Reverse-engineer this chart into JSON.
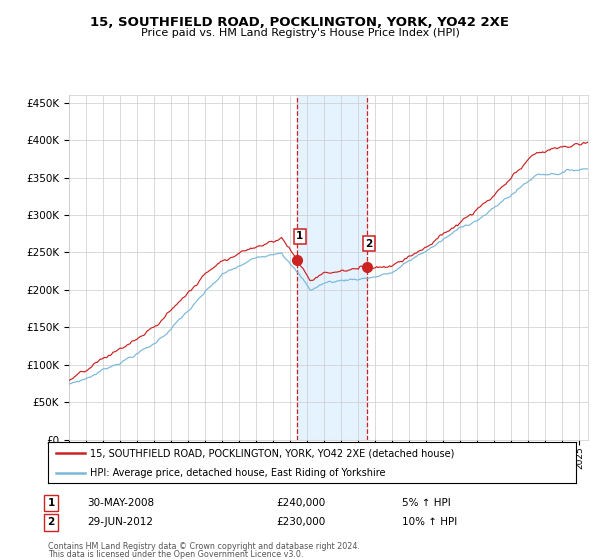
{
  "title": "15, SOUTHFIELD ROAD, POCKLINGTON, YORK, YO42 2XE",
  "subtitle": "Price paid vs. HM Land Registry's House Price Index (HPI)",
  "legend_line1": "15, SOUTHFIELD ROAD, POCKLINGTON, YORK, YO42 2XE (detached house)",
  "legend_line2": "HPI: Average price, detached house, East Riding of Yorkshire",
  "transaction1_label": "1",
  "transaction1_date": "30-MAY-2008",
  "transaction1_price": "£240,000",
  "transaction1_hpi": "5% ↑ HPI",
  "transaction1_year": 2008.41,
  "transaction1_value": 240000,
  "transaction2_label": "2",
  "transaction2_date": "29-JUN-2012",
  "transaction2_price": "£230,000",
  "transaction2_hpi": "10% ↑ HPI",
  "transaction2_year": 2012.49,
  "transaction2_value": 230000,
  "footnote1": "Contains HM Land Registry data © Crown copyright and database right 2024.",
  "footnote2": "This data is licensed under the Open Government Licence v3.0.",
  "hpi_color": "#7ab8d9",
  "price_color": "#cc2222",
  "background_color": "#ffffff",
  "grid_color": "#cccccc",
  "shading_color": "#ddeeff",
  "ylim": [
    0,
    460000
  ],
  "xlim_start": 1995,
  "xlim_end": 2025.5
}
